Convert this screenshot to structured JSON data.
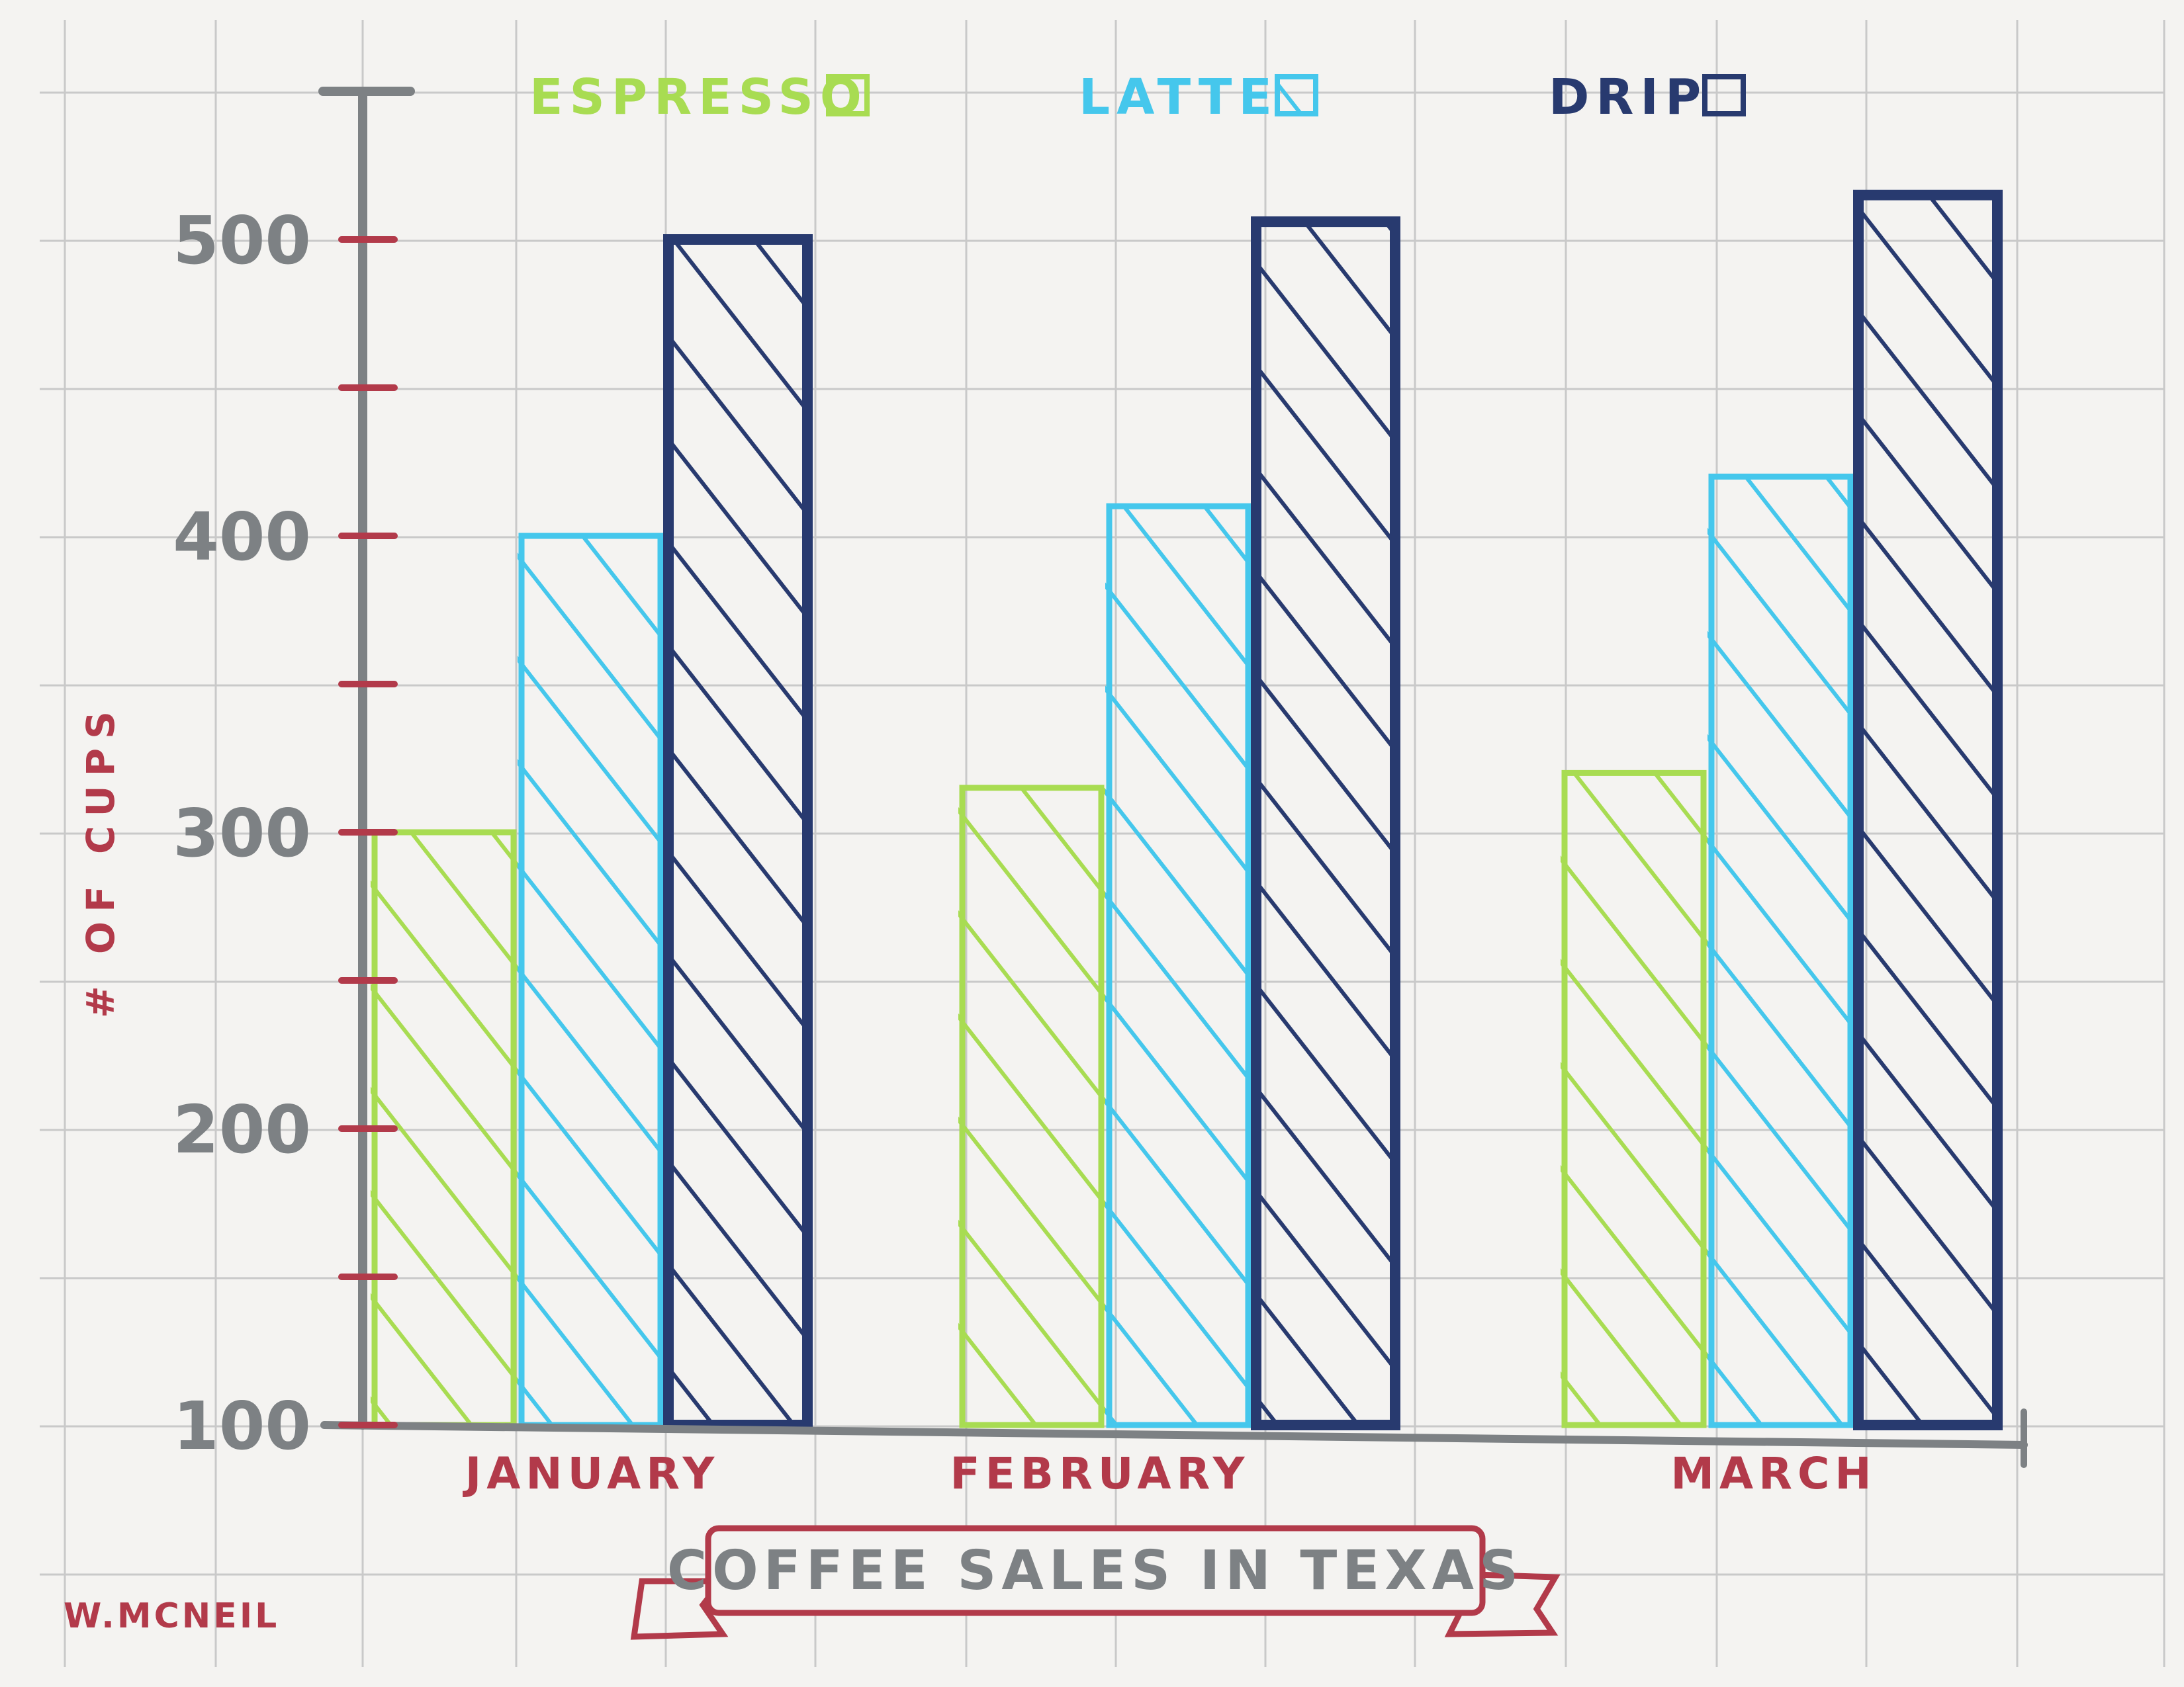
{
  "colors": {
    "paper": "#f4f3f1",
    "grid": "#c9c9c9",
    "axis": "#7d8184",
    "tick": "#b23a4a",
    "label_red": "#b23a4a",
    "espresso": "#a8dc52",
    "latte": "#45c7ec",
    "drip": "#283a6f"
  },
  "chart_data": {
    "type": "bar",
    "title": "COFFEE SALES IN TEXAS",
    "xlabel": "",
    "ylabel": "# OF CUPS",
    "ylim": [
      100,
      500
    ],
    "y_ticks": [
      "100",
      "200",
      "300",
      "400",
      "500"
    ],
    "categories": [
      "JANUARY",
      "FEBRUARY",
      "MARCH"
    ],
    "series": [
      {
        "name": "ESPRESSO",
        "color_key": "espresso",
        "values": [
          300,
          315,
          320
        ]
      },
      {
        "name": "LATTE",
        "color_key": "latte",
        "values": [
          400,
          410,
          420
        ]
      },
      {
        "name": "DRIP",
        "color_key": "drip",
        "values": [
          500,
          506,
          515
        ]
      }
    ],
    "legend_position": "top",
    "grid": true
  },
  "signature": "W.MCNEIL"
}
